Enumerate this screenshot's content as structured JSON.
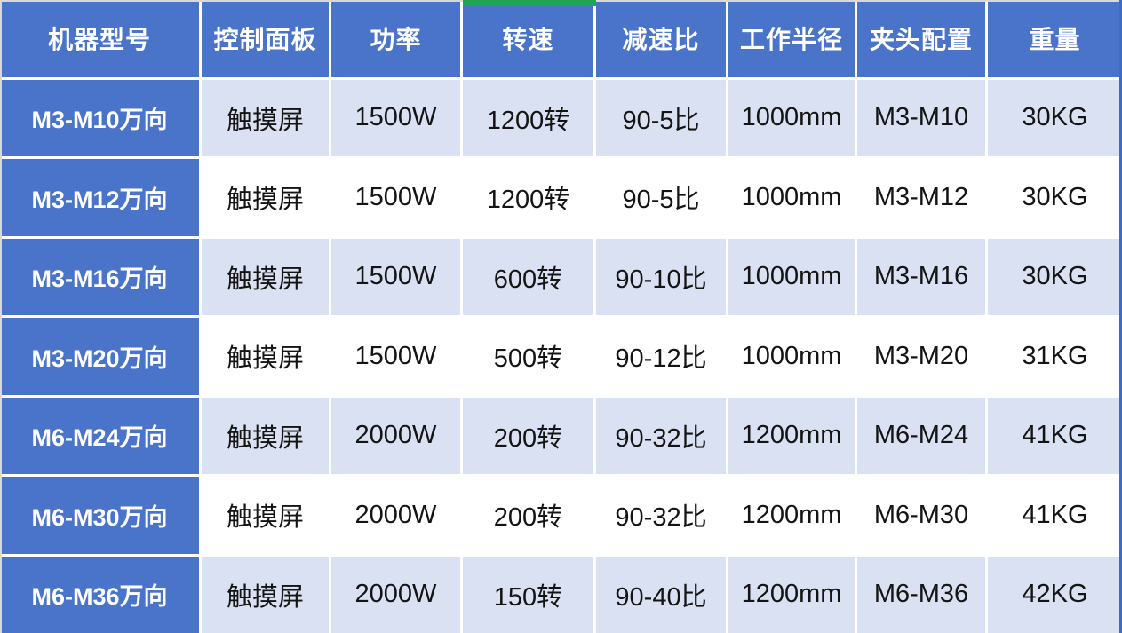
{
  "chart_data": {
    "type": "table",
    "columns": [
      "机器型号",
      "控制面板",
      "功率",
      "转速",
      "减速比",
      "工作半径",
      "夹头配置",
      "重量"
    ],
    "rows": [
      [
        "M3-M10万向",
        "触摸屏",
        "1500W",
        "1200转",
        "90-5比",
        "1000mm",
        "M3-M10",
        "30KG"
      ],
      [
        "M3-M12万向",
        "触摸屏",
        "1500W",
        "1200转",
        "90-5比",
        "1000mm",
        "M3-M12",
        "30KG"
      ],
      [
        "M3-M16万向",
        "触摸屏",
        "1500W",
        "600转",
        "90-10比",
        "1000mm",
        "M3-M16",
        "30KG"
      ],
      [
        "M3-M20万向",
        "触摸屏",
        "1500W",
        "500转",
        "90-12比",
        "1000mm",
        "M3-M20",
        "31KG"
      ],
      [
        "M6-M24万向",
        "触摸屏",
        "2000W",
        "200转",
        "90-32比",
        "1200mm",
        "M6-M24",
        "41KG"
      ],
      [
        "M6-M30万向",
        "触摸屏",
        "2000W",
        "200转",
        "90-32比",
        "1200mm",
        "M6-M30",
        "41KG"
      ],
      [
        "M6-M36万向",
        "触摸屏",
        "2000W",
        "150转",
        "90-40比",
        "1200mm",
        "M6-M36",
        "42KG"
      ]
    ],
    "accent_marker_column": "转速",
    "layout": "header row and first column highlighted blue, data rows alternate light-blue and white"
  },
  "colors": {
    "header_blue": "#4a74c9",
    "row_light": "#dae1f2",
    "row_white": "#ffffff",
    "accent_green": "#22a456",
    "edge_gray": "#d9d9d9",
    "edge_blue": "#3f6cc0",
    "text_dark": "#141414"
  }
}
